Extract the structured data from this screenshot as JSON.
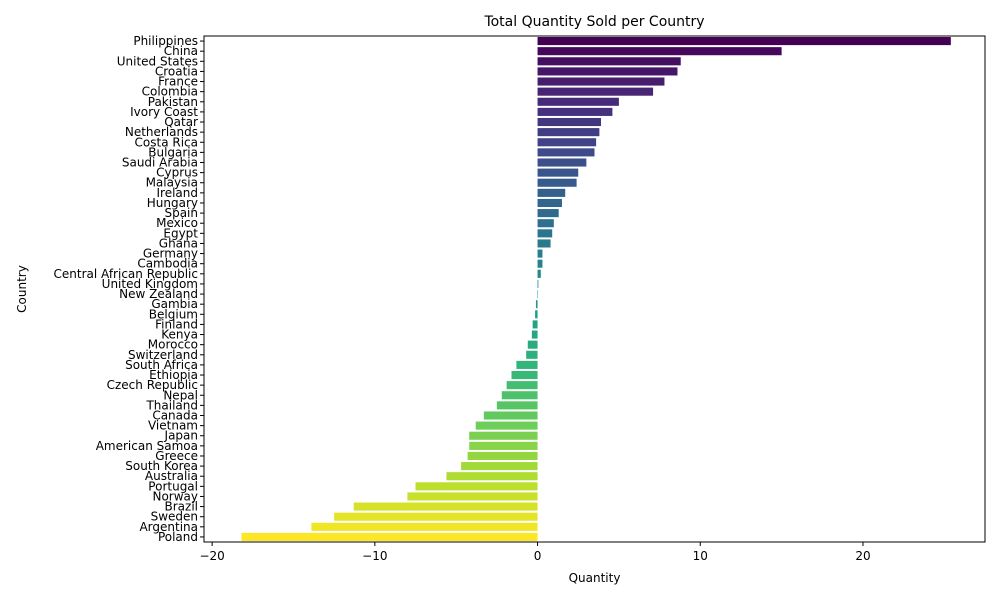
{
  "chart_data": {
    "type": "bar",
    "orientation": "horizontal",
    "title": "Total Quantity Sold per Country",
    "xlabel": "Quantity",
    "ylabel": "Country",
    "xlim": [
      -20.5,
      27.5
    ],
    "xticks": [
      -20,
      -10,
      0,
      10,
      20
    ],
    "xtick_labels": [
      "−20",
      "−10",
      "0",
      "10",
      "20"
    ],
    "grid": false,
    "palette": "viridis",
    "color_start": "#440154",
    "color_end": "#fde725",
    "categories": [
      "Philippines",
      "China",
      "United States",
      "Croatia",
      "France",
      "Colombia",
      "Pakistan",
      "Ivory Coast",
      "Qatar",
      "Netherlands",
      "Costa Rica",
      "Bulgaria",
      "Saudi Arabia",
      "Cyprus",
      "Malaysia",
      "Ireland",
      "Hungary",
      "Spain",
      "Mexico",
      "Egypt",
      "Ghana",
      "Germany",
      "Cambodia",
      "Central African Republic",
      "United Kingdom",
      "New Zealand",
      "Gambia",
      "Belgium",
      "Finland",
      "Kenya",
      "Morocco",
      "Switzerland",
      "South Africa",
      "Ethiopia",
      "Czech Republic",
      "Nepal",
      "Thailand",
      "Canada",
      "Vietnam",
      "Japan",
      "American Samoa",
      "Greece",
      "South Korea",
      "Australia",
      "Portugal",
      "Norway",
      "Brazil",
      "Sweden",
      "Argentina",
      "Poland"
    ],
    "values": [
      25.4,
      15.0,
      8.8,
      8.6,
      7.8,
      7.1,
      5.0,
      4.6,
      3.9,
      3.8,
      3.6,
      3.5,
      3.0,
      2.5,
      2.4,
      1.7,
      1.5,
      1.3,
      1.0,
      0.9,
      0.8,
      0.3,
      0.3,
      0.2,
      0.05,
      0.0,
      -0.1,
      -0.15,
      -0.3,
      -0.35,
      -0.6,
      -0.7,
      -1.3,
      -1.6,
      -1.9,
      -2.2,
      -2.5,
      -3.3,
      -3.8,
      -4.2,
      -4.2,
      -4.3,
      -4.7,
      -5.6,
      -7.5,
      -8.0,
      -11.3,
      -12.5,
      -13.9,
      -18.2
    ]
  }
}
